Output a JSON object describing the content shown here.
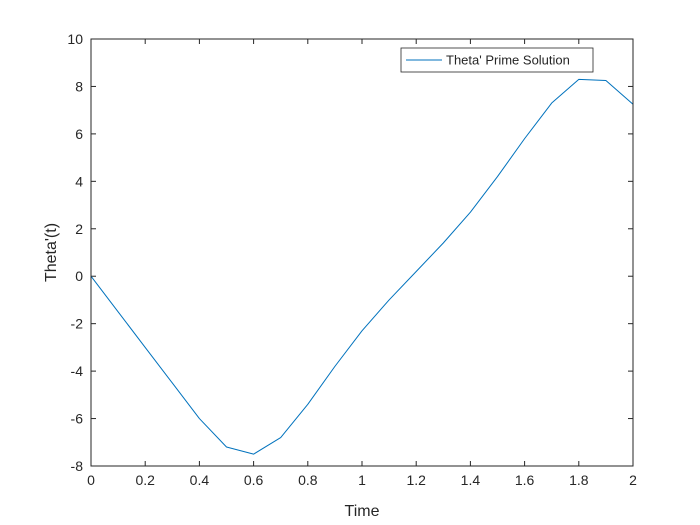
{
  "chart_data": {
    "type": "line",
    "title": "",
    "xlabel": "Time",
    "ylabel": "Theta'(t)",
    "xlim": [
      0,
      2
    ],
    "ylim": [
      -8,
      10
    ],
    "grid": false,
    "legend_position": "top-right",
    "x_ticks": [
      "0",
      "0.2",
      "0.4",
      "0.6",
      "0.8",
      "1",
      "1.2",
      "1.4",
      "1.6",
      "1.8",
      "2"
    ],
    "y_ticks": [
      "-8",
      "-6",
      "-4",
      "-2",
      "0",
      "2",
      "4",
      "6",
      "8",
      "10"
    ],
    "series": [
      {
        "name": "Theta' Prime Solution",
        "color": "#0072BD",
        "x": [
          0,
          0.1,
          0.2,
          0.3,
          0.4,
          0.5,
          0.6,
          0.7,
          0.8,
          0.9,
          1.0,
          1.1,
          1.2,
          1.3,
          1.4,
          1.5,
          1.6,
          1.7,
          1.8,
          1.9,
          2.0
        ],
        "y": [
          0,
          -1.5,
          -3.0,
          -4.5,
          -6.0,
          -7.2,
          -7.5,
          -6.8,
          -5.4,
          -3.8,
          -2.3,
          -1.0,
          0.2,
          1.4,
          2.7,
          4.2,
          5.8,
          7.3,
          8.3,
          8.25,
          7.25
        ]
      }
    ]
  }
}
